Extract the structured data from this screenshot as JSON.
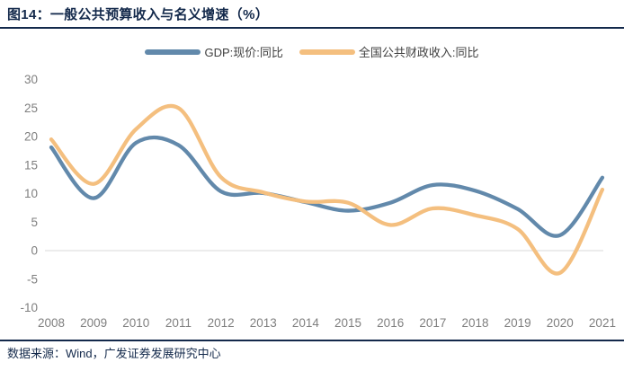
{
  "figure": {
    "title": "图14：一般公共预算收入与名义增速（%）",
    "source": "数据来源：Wind，广发证券发展研究中心"
  },
  "chart_data": {
    "type": "line",
    "x": [
      2008,
      2009,
      2010,
      2011,
      2012,
      2013,
      2014,
      2015,
      2016,
      2017,
      2018,
      2019,
      2020,
      2021
    ],
    "series": [
      {
        "name": "GDP:现价:同比",
        "color": "#6289AB",
        "values": [
          18.1,
          9.2,
          18.9,
          18.5,
          10.4,
          10.1,
          8.5,
          7.0,
          8.4,
          11.5,
          10.5,
          7.3,
          2.7,
          12.8
        ]
      },
      {
        "name": "全国公共财政收入:同比",
        "color": "#F4BF7F",
        "values": [
          19.5,
          11.7,
          21.3,
          25.0,
          12.9,
          10.2,
          8.6,
          8.4,
          4.5,
          7.4,
          6.2,
          3.8,
          -3.9,
          10.7
        ]
      }
    ],
    "title": "一般公共预算收入与名义增速（%）",
    "xlabel": "",
    "ylabel": "",
    "ylim": [
      -10,
      30
    ],
    "yticks": [
      30,
      25,
      20,
      15,
      10,
      5,
      0,
      -5,
      -10
    ],
    "grid": "zero-line-only",
    "legend_position": "top-center",
    "smooth": true
  },
  "colors": {
    "title_navy": "#13294B",
    "axis_gray": "#7F7F7F",
    "zero_gridline": "#D9D9D9",
    "gdp_line": "#6289AB",
    "fiscal_line": "#F4BF7F"
  }
}
